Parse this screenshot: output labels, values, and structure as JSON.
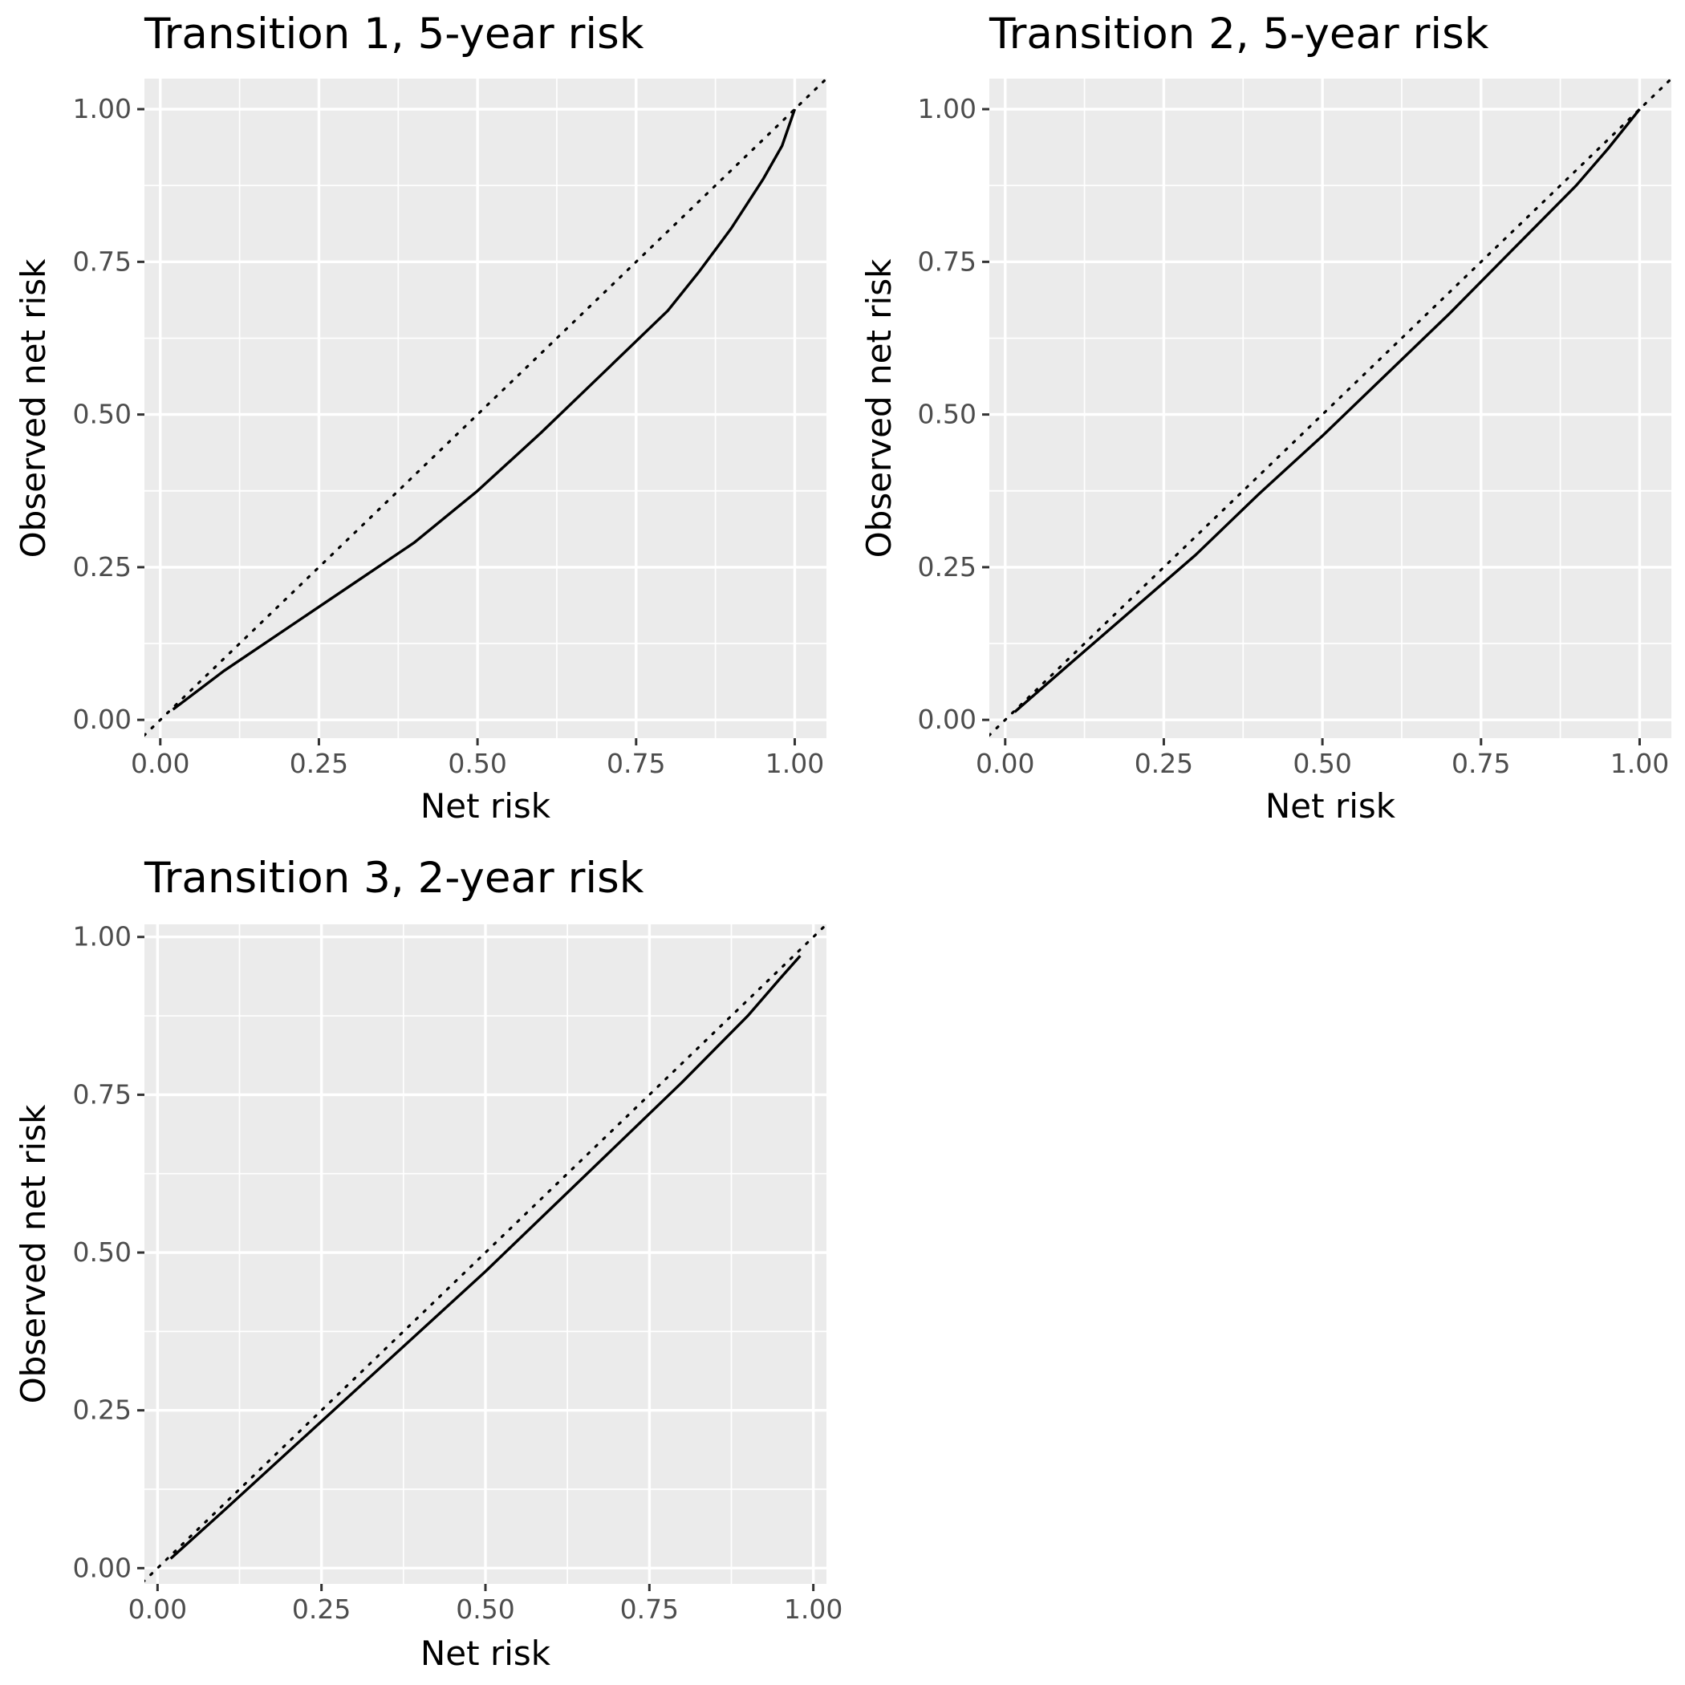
{
  "chart_data": [
    {
      "type": "line",
      "title": "Transition 1, 5-year risk",
      "xlabel": "Net risk",
      "ylabel": "Observed net risk",
      "xlim": [
        -0.025,
        1.05
      ],
      "ylim": [
        -0.03,
        1.05
      ],
      "xticks": [
        "0.00",
        "0.25",
        "0.50",
        "0.75",
        "1.00"
      ],
      "yticks": [
        "0.00",
        "0.25",
        "0.50",
        "0.75",
        "1.00"
      ],
      "grid": true,
      "reference_line": "y = x",
      "series": [
        {
          "x": [
            0.02,
            0.1,
            0.2,
            0.3,
            0.4,
            0.5,
            0.6,
            0.7,
            0.8,
            0.85,
            0.9,
            0.95,
            0.98,
            1.0
          ],
          "y": [
            0.017,
            0.08,
            0.15,
            0.22,
            0.29,
            0.375,
            0.47,
            0.57,
            0.67,
            0.735,
            0.805,
            0.885,
            0.94,
            1.0
          ]
        }
      ]
    },
    {
      "type": "line",
      "title": "Transition 2, 5-year risk",
      "xlabel": "Net risk",
      "ylabel": "Observed net risk",
      "xlim": [
        -0.025,
        1.05
      ],
      "ylim": [
        -0.03,
        1.05
      ],
      "xticks": [
        "0.00",
        "0.25",
        "0.50",
        "0.75",
        "1.00"
      ],
      "yticks": [
        "0.00",
        "0.25",
        "0.50",
        "0.75",
        "1.00"
      ],
      "grid": true,
      "reference_line": "y = x",
      "series": [
        {
          "x": [
            0.015,
            0.1,
            0.2,
            0.3,
            0.4,
            0.5,
            0.6,
            0.7,
            0.8,
            0.9,
            0.95,
            1.0
          ],
          "y": [
            0.013,
            0.09,
            0.18,
            0.27,
            0.37,
            0.465,
            0.565,
            0.665,
            0.77,
            0.875,
            0.935,
            1.0
          ]
        }
      ]
    },
    {
      "type": "line",
      "title": "Transition 3, 2-year risk",
      "xlabel": "Net risk",
      "ylabel": "Observed net risk",
      "xlim": [
        -0.02,
        1.02
      ],
      "ylim": [
        -0.025,
        1.02
      ],
      "xticks": [
        "0.00",
        "0.25",
        "0.50",
        "0.75",
        "1.00"
      ],
      "yticks": [
        "0.00",
        "0.25",
        "0.50",
        "0.75",
        "1.00"
      ],
      "grid": true,
      "reference_line": "y = x",
      "series": [
        {
          "x": [
            0.02,
            0.1,
            0.2,
            0.3,
            0.4,
            0.5,
            0.6,
            0.7,
            0.8,
            0.9,
            0.95,
            0.98
          ],
          "y": [
            0.015,
            0.09,
            0.185,
            0.28,
            0.375,
            0.47,
            0.57,
            0.67,
            0.77,
            0.875,
            0.935,
            0.97
          ]
        }
      ]
    }
  ]
}
